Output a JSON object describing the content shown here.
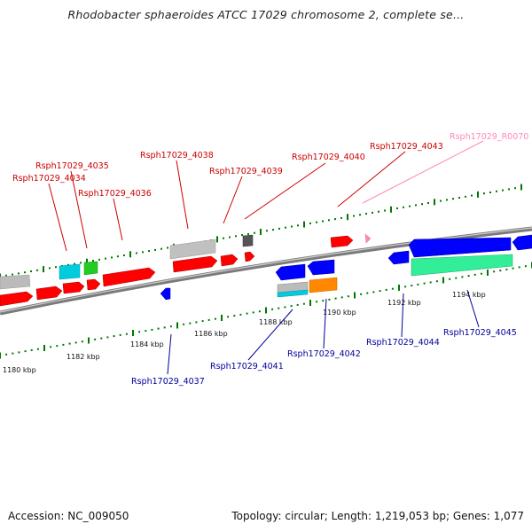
{
  "title": "Rhodobacter sphaeroides ATCC 17029 chromosome 2, complete se...",
  "footer": {
    "accession": "Accession: NC_009050",
    "topology": "Topology: circular; Length: 1,219,053 bp; Genes: 1,077"
  },
  "colors": {
    "red": "#ff0000",
    "blue": "#0000ff",
    "gray": "#bbbbbb",
    "cyan": "#00ccdd",
    "green": "#22cc22",
    "orange": "#ff8800",
    "mint": "#33ee99",
    "pink": "#ff88bb",
    "darkgray": "#555555",
    "backbone": "#888888",
    "scale_tick": "#007700",
    "top_label": "#cc0000",
    "bottom_label": "#000099",
    "rna_label": "#ff88bb"
  },
  "scale_labels": [
    "1180 kbp",
    "1182 kbp",
    "1184 kbp",
    "1186 kbp",
    "1188 kbp",
    "1190 kbp",
    "1192 kbp",
    "1194 kbp"
  ],
  "top_labels": [
    "Rsph17029_4034",
    "Rsph17029_4035",
    "Rsph17029_4036",
    "Rsph17029_4038",
    "Rsph17029_4039",
    "Rsph17029_4040",
    "Rsph17029_4043",
    "Rsph17029_R0070"
  ],
  "bottom_labels": [
    "Rsph17029_4037",
    "Rsph17029_4041",
    "Rsph17029_4042",
    "Rsph17029_4044",
    "Rsph17029_4045"
  ]
}
